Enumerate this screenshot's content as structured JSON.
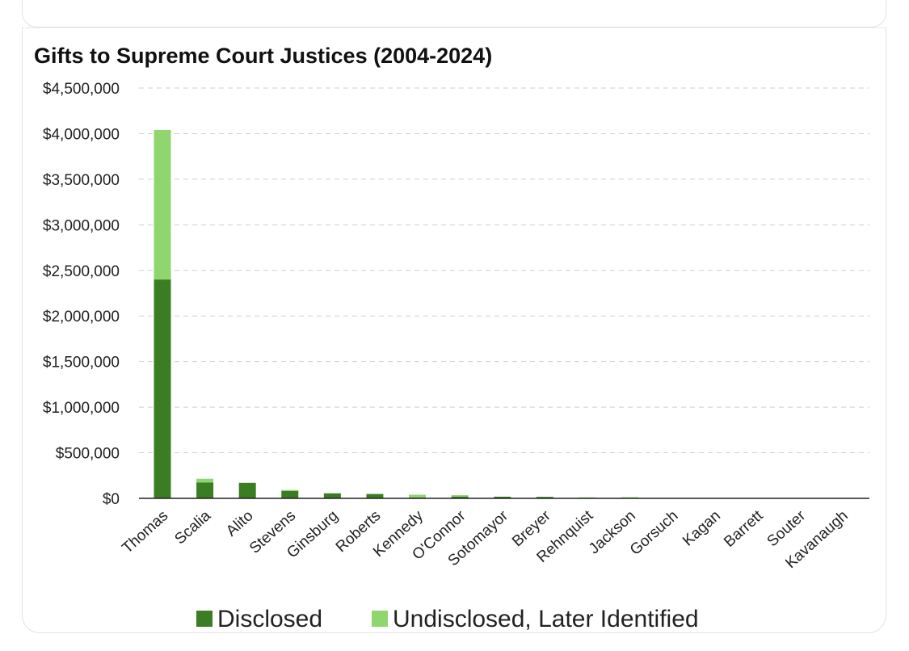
{
  "chart_data": {
    "type": "bar",
    "stacked": true,
    "title": "Gifts to Supreme Court Justices (2004-2024)",
    "xlabel": "",
    "ylabel": "",
    "ylim": [
      0,
      4500000
    ],
    "yticks": [
      0,
      500000,
      1000000,
      1500000,
      2000000,
      2500000,
      3000000,
      3500000,
      4000000,
      4500000
    ],
    "ytick_labels": [
      "$0",
      "$500,000",
      "$1,000,000",
      "$1,500,000",
      "$2,000,000",
      "$2,500,000",
      "$3,000,000",
      "$3,500,000",
      "$4,000,000",
      "$4,500,000"
    ],
    "grid": true,
    "legend_position": "bottom",
    "categories": [
      "Thomas",
      "Scalia",
      "Alito",
      "Stevens",
      "Ginsburg",
      "Roberts",
      "Kennedy",
      "O'Connor",
      "Sotomayor",
      "Breyer",
      "Rehnquist",
      "Jackson",
      "Gorsuch",
      "Kagan",
      "Barrett",
      "Souter",
      "Kavanaugh"
    ],
    "series": [
      {
        "name": "Disclosed",
        "color": "#3b7d23",
        "values": [
          2400000,
          175000,
          170000,
          80000,
          55000,
          48000,
          10000,
          20000,
          18000,
          16000,
          5000,
          5000,
          3000,
          2000,
          1000,
          1000,
          500
        ]
      },
      {
        "name": "Undisclosed, Later Identified",
        "color": "#8fd66f",
        "values": [
          1640000,
          40000,
          0,
          12000,
          0,
          0,
          30000,
          15000,
          0,
          0,
          6000,
          8000,
          0,
          0,
          0,
          0,
          0
        ]
      }
    ]
  }
}
